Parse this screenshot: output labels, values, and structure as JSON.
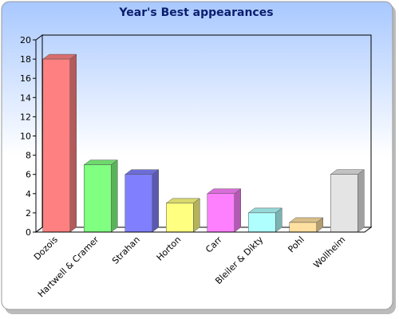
{
  "chart_data": {
    "type": "bar3d",
    "title": "Year's Best appearances",
    "categories": [
      "Dozois",
      "Hartwell & Cramer",
      "Strahan",
      "Horton",
      "Carr",
      "Bleiler & Dikty",
      "Pohl",
      "Wollheim"
    ],
    "values": [
      18,
      7,
      6,
      3,
      4,
      2,
      1,
      6
    ],
    "colors": [
      "#ff8080",
      "#80ff80",
      "#8080ff",
      "#ffff80",
      "#ff80ff",
      "#b0ffff",
      "#ffe0a0",
      "#e4e4e4"
    ],
    "ylim": [
      0,
      20
    ],
    "yticks": [
      0,
      2,
      4,
      6,
      8,
      10,
      12,
      14,
      16,
      18,
      20
    ]
  }
}
